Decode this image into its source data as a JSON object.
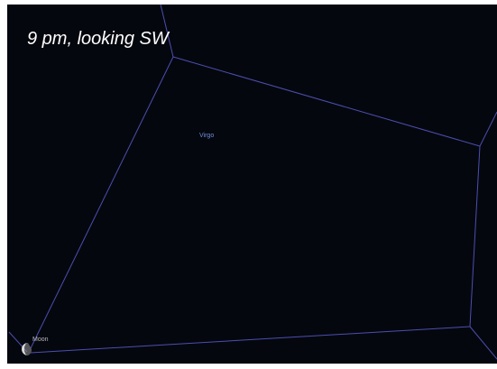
{
  "title": "9 pm, looking SW",
  "labels": {
    "constellation": "Virgo",
    "moon": "Moon"
  }
}
